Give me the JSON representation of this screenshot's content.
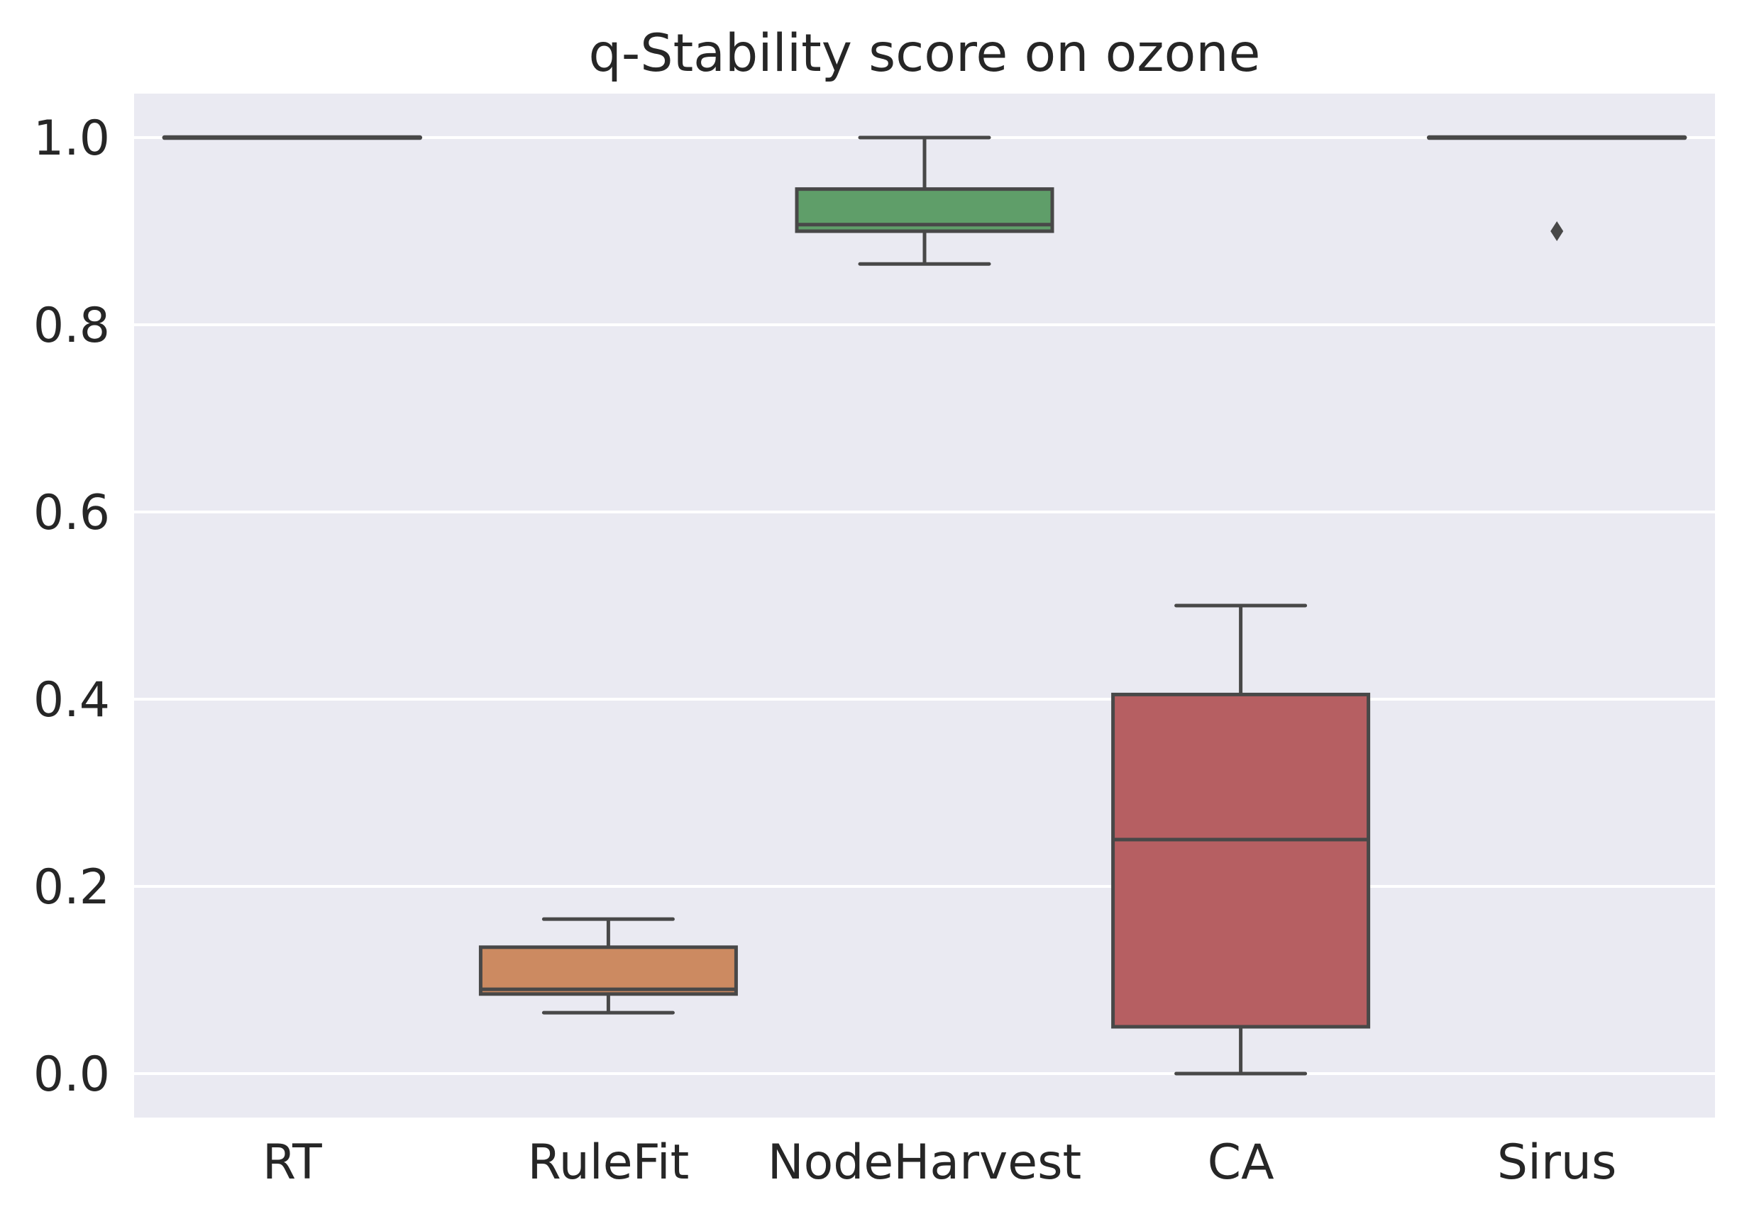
{
  "chart_data": {
    "type": "boxplot",
    "title": "q-Stability score on ozone",
    "xlabel": "",
    "ylabel": "",
    "legend": "none",
    "categories": [
      "RT",
      "RuleFit",
      "NodeHarvest",
      "CA",
      "Sirus"
    ],
    "yticks": [
      {
        "label": "0.0",
        "value": 0.0
      },
      {
        "label": "0.2",
        "value": 0.2
      },
      {
        "label": "0.4",
        "value": 0.4
      },
      {
        "label": "0.6",
        "value": 0.6
      },
      {
        "label": "0.8",
        "value": 0.8
      },
      {
        "label": "1.0",
        "value": 1.0
      }
    ],
    "ylim": [
      -0.047,
      1.047
    ],
    "grid": {
      "horizontal": true,
      "vertical": false
    },
    "series": [
      {
        "label": "RT",
        "whisker_low": 1.0,
        "q1": 1.0,
        "median": 1.0,
        "q3": 1.0,
        "whisker_high": 1.0,
        "outliers": [],
        "fill": null
      },
      {
        "label": "RuleFit",
        "whisker_low": 0.065,
        "q1": 0.085,
        "median": 0.09,
        "q3": 0.135,
        "whisker_high": 0.165,
        "outliers": [],
        "fill": "#cc8a61"
      },
      {
        "label": "NodeHarvest",
        "whisker_low": 0.865,
        "q1": 0.9,
        "median": 0.907,
        "q3": 0.945,
        "whisker_high": 1.0,
        "outliers": [],
        "fill": "#5f9e69"
      },
      {
        "label": "CA",
        "whisker_low": 0.0,
        "q1": 0.05,
        "median": 0.25,
        "q3": 0.405,
        "whisker_high": 0.5,
        "outliers": [],
        "fill": "#b65f62"
      },
      {
        "label": "Sirus",
        "whisker_low": 1.0,
        "q1": 1.0,
        "median": 1.0,
        "q3": 1.0,
        "whisker_high": 1.0,
        "outliers": [
          0.9
        ],
        "fill": null
      }
    ],
    "colors": {
      "plot_background": "#eaeaf2",
      "gridline": "#ffffff",
      "box_edge": "#484848",
      "outlier": "#484848",
      "text": "#262626"
    }
  }
}
